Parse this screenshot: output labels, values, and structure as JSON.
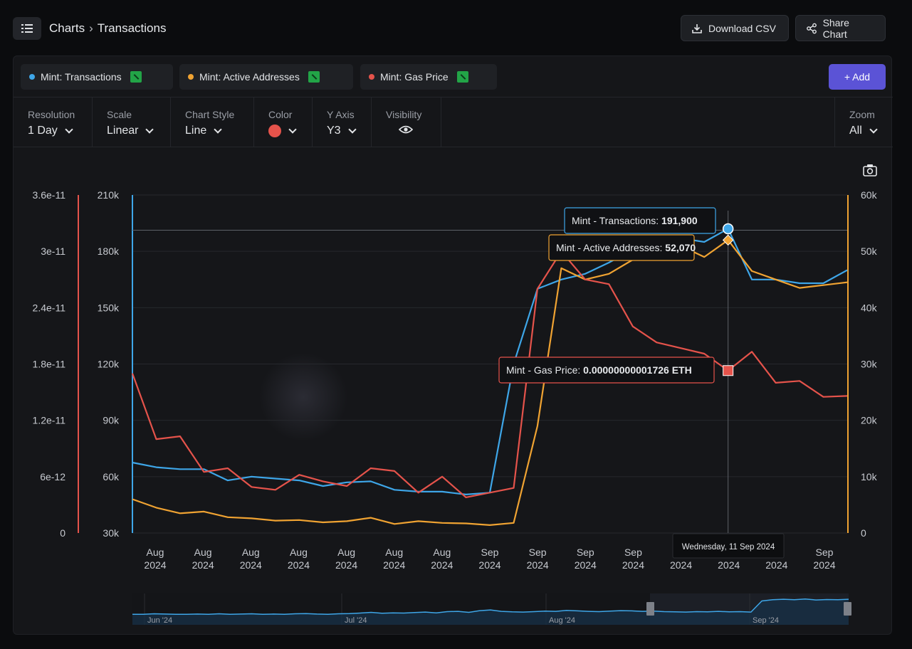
{
  "header": {
    "breadcrumb_root": "Charts",
    "breadcrumb_sep": "›",
    "breadcrumb_current": "Transactions",
    "download_label": "Download CSV",
    "share_label": "Share Chart"
  },
  "series_chips": [
    {
      "label": "Mint: Transactions",
      "color": "#3ea6e8"
    },
    {
      "label": "Mint: Active Addresses",
      "color": "#f0a332"
    },
    {
      "label": "Mint: Gas Price",
      "color": "#e5534b"
    }
  ],
  "add_label": "+ Add",
  "controls": {
    "resolution": {
      "label": "Resolution",
      "value": "1 Day"
    },
    "scale": {
      "label": "Scale",
      "value": "Linear"
    },
    "chart_style": {
      "label": "Chart Style",
      "value": "Line"
    },
    "color": {
      "label": "Color",
      "value": "#e5534b"
    },
    "y_axis": {
      "label": "Y Axis",
      "value": "Y3"
    },
    "visibility": {
      "label": "Visibility"
    },
    "zoom": {
      "label": "Zoom",
      "value": "All"
    }
  },
  "chart_data": {
    "type": "line",
    "x_tick_labels": [
      [
        "Aug",
        "2024"
      ],
      [
        "Aug",
        "2024"
      ],
      [
        "Aug",
        "2024"
      ],
      [
        "Aug",
        "2024"
      ],
      [
        "Aug",
        "2024"
      ],
      [
        "Aug",
        "2024"
      ],
      [
        "Aug",
        "2024"
      ],
      [
        "Sep",
        "2024"
      ],
      [
        "Sep",
        "2024"
      ],
      [
        "Sep",
        "2024"
      ],
      [
        "Sep",
        "2024"
      ],
      [
        "",
        "2024"
      ],
      [
        "",
        "2024"
      ],
      [
        "",
        "2024"
      ],
      [
        "Sep",
        "2024"
      ]
    ],
    "x_count": 31,
    "axes": {
      "y_left_gas": {
        "min": 0,
        "max": 3.6e-11,
        "ticks": [
          "0",
          "6e-12",
          "1.2e-11",
          "1.8e-11",
          "2.4e-11",
          "3e-11",
          "3.6e-11"
        ],
        "color": "#e5534b"
      },
      "y_left_tx": {
        "min": 30000,
        "max": 210000,
        "ticks": [
          "30k",
          "60k",
          "90k",
          "120k",
          "150k",
          "180k",
          "210k"
        ],
        "color": "#3ea6e8"
      },
      "y_right_addr": {
        "min": 0,
        "max": 60000,
        "ticks": [
          "0",
          "10k",
          "20k",
          "30k",
          "40k",
          "50k",
          "60k"
        ],
        "color": "#f0a332"
      }
    },
    "series": [
      {
        "name": "Mint: Transactions",
        "axis": "y_left_tx",
        "color": "#3ea6e8",
        "values": [
          67500,
          65000,
          64000,
          64000,
          58000,
          60000,
          59000,
          58000,
          55000,
          57000,
          57500,
          53000,
          52000,
          52000,
          50500,
          51500,
          120000,
          160000,
          165000,
          168000,
          174000,
          181000,
          184000,
          187000,
          185000,
          192000,
          165000,
          165000,
          163000,
          163000,
          170000
        ]
      },
      {
        "name": "Mint: Active Addresses",
        "axis": "y_right_addr",
        "color": "#f0a332",
        "values": [
          6000,
          4500,
          3500,
          3800,
          2800,
          2600,
          2200,
          2300,
          1900,
          2100,
          2700,
          1600,
          2100,
          1800,
          1700,
          1400,
          1800,
          19000,
          47000,
          45000,
          46000,
          48500,
          50000,
          51000,
          49000,
          52000,
          46500,
          45000,
          43500,
          44000,
          44500
        ]
      },
      {
        "name": "Mint: Gas Price",
        "axis": "y_left_gas",
        "color": "#e5534b",
        "values": [
          1.7e-11,
          1e-11,
          1.03e-11,
          6.5e-12,
          6.9e-12,
          4.9e-12,
          4.6e-12,
          6.2e-12,
          5.5e-12,
          5e-12,
          6.9e-12,
          6.6e-12,
          4.3e-12,
          6e-12,
          3.8e-12,
          4.3e-12,
          4.8e-12,
          2.6e-11,
          3e-11,
          2.7e-11,
          2.65e-11,
          2.2e-11,
          2.03e-11,
          1.97e-11,
          1.91e-11,
          1.73e-11,
          1.93e-11,
          1.6e-11,
          1.62e-11,
          1.45e-11,
          1.46e-11
        ]
      }
    ],
    "hover_index": 25,
    "tooltips": [
      {
        "label": "Mint - Transactions:",
        "value": "191,900"
      },
      {
        "label": "Mint - Active Addresses:",
        "value": "52,070"
      },
      {
        "label": "Mint - Gas Price:",
        "value": "0.00000000001726 ETH"
      }
    ],
    "hover_date": "Wednesday, 11 Sep 2024",
    "navigator": {
      "labels": [
        "Jun '24",
        "Jul '24",
        "Aug '24",
        "Sep '24"
      ],
      "values": [
        2,
        2,
        2.2,
        2.1,
        2,
        2,
        2.1,
        2,
        2.2,
        2,
        2.1,
        2.2,
        2,
        2.1,
        2,
        2.2,
        2.3,
        2.1,
        2,
        2.2,
        2.3,
        2.5,
        2.8,
        2.4,
        2.6,
        2.5,
        2.7,
        2.9,
        2.6,
        3.1,
        3.2,
        2.8,
        3.5,
        3.8,
        3.2,
        3.0,
        2.9,
        3.1,
        3.3,
        3.2,
        3.6,
        3.4,
        3.2,
        3.1,
        3.3,
        3.5,
        3.4,
        3.2,
        3.3,
        3.1,
        3.0,
        2.9,
        3.1,
        3.0,
        3.2,
        3.0,
        3.1,
        2.9,
        7.5,
        8.0,
        8.2,
        8.0,
        8.3,
        7.9,
        8.1,
        8.0,
        8.2
      ]
    }
  }
}
